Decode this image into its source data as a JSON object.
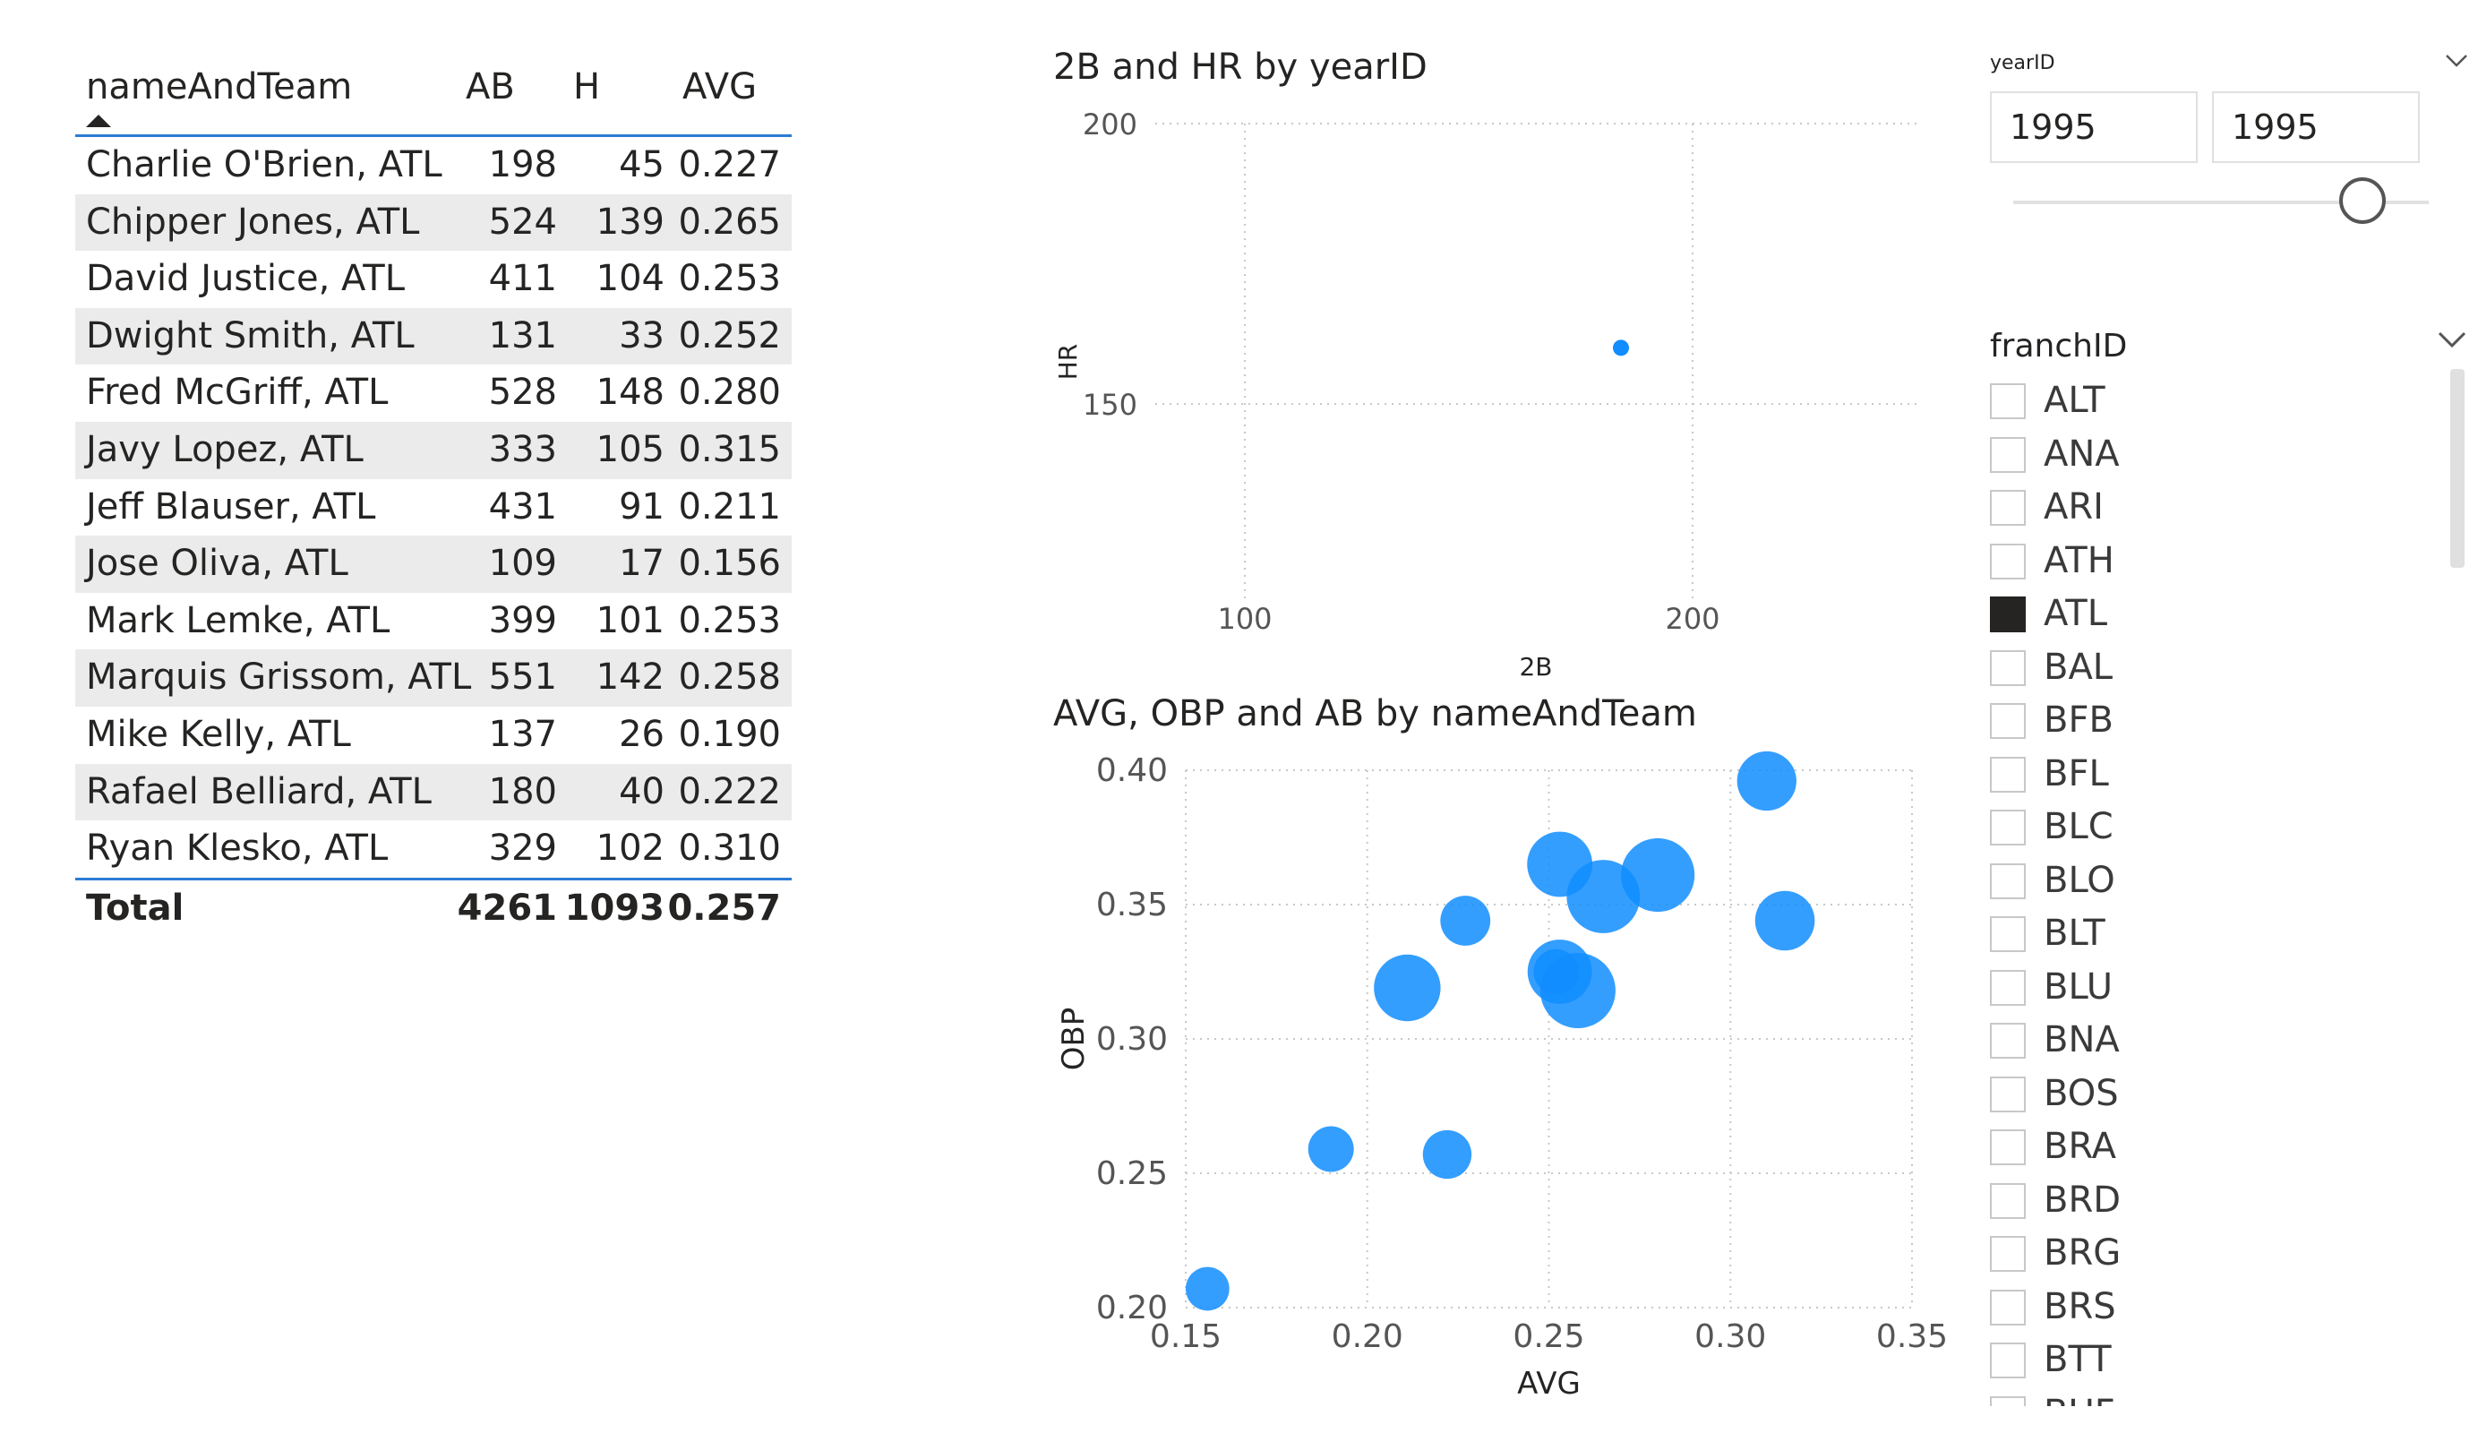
{
  "table": {
    "headers": {
      "name": "nameAndTeam",
      "ab": "AB",
      "h": "H",
      "avg": "AVG"
    },
    "rows": [
      {
        "name": "Charlie O'Brien, ATL",
        "ab": "198",
        "h": "45",
        "avg": "0.227"
      },
      {
        "name": "Chipper Jones, ATL",
        "ab": "524",
        "h": "139",
        "avg": "0.265"
      },
      {
        "name": "David Justice, ATL",
        "ab": "411",
        "h": "104",
        "avg": "0.253"
      },
      {
        "name": "Dwight Smith, ATL",
        "ab": "131",
        "h": "33",
        "avg": "0.252"
      },
      {
        "name": "Fred McGriff, ATL",
        "ab": "528",
        "h": "148",
        "avg": "0.280"
      },
      {
        "name": "Javy Lopez, ATL",
        "ab": "333",
        "h": "105",
        "avg": "0.315"
      },
      {
        "name": "Jeff Blauser, ATL",
        "ab": "431",
        "h": "91",
        "avg": "0.211"
      },
      {
        "name": "Jose Oliva, ATL",
        "ab": "109",
        "h": "17",
        "avg": "0.156"
      },
      {
        "name": "Mark Lemke, ATL",
        "ab": "399",
        "h": "101",
        "avg": "0.253"
      },
      {
        "name": "Marquis Grissom, ATL",
        "ab": "551",
        "h": "142",
        "avg": "0.258"
      },
      {
        "name": "Mike Kelly, ATL",
        "ab": "137",
        "h": "26",
        "avg": "0.190"
      },
      {
        "name": "Rafael Belliard, ATL",
        "ab": "180",
        "h": "40",
        "avg": "0.222"
      },
      {
        "name": "Ryan Klesko, ATL",
        "ab": "329",
        "h": "102",
        "avg": "0.310"
      }
    ],
    "total": {
      "label": "Total",
      "ab": "4261",
      "h": "1093",
      "avg": "0.257"
    }
  },
  "colors": {
    "accent": "#2b7cd3",
    "bubble": "#118dff",
    "row_alt": "#ebebeb"
  },
  "chart_data": [
    {
      "type": "scatter",
      "title": "2B and HR by yearID",
      "xlabel": "2B",
      "ylabel": "HR",
      "xlim": [
        80,
        250
      ],
      "ylim": [
        115,
        200
      ],
      "xticks": [
        100,
        200
      ],
      "yticks": [
        150,
        200
      ],
      "points": [
        {
          "x": 184,
          "y": 160
        }
      ]
    },
    {
      "type": "scatter",
      "title": "AVG, OBP and AB by nameAndTeam",
      "xlabel": "AVG",
      "ylabel": "OBP",
      "xlim": [
        0.15,
        0.35
      ],
      "ylim": [
        0.2,
        0.4
      ],
      "xticks": [
        "0.15",
        "0.20",
        "0.25",
        "0.30",
        "0.35"
      ],
      "yticks": [
        "0.20",
        "0.25",
        "0.30",
        "0.35",
        "0.40"
      ],
      "size_field": "AB",
      "points": [
        {
          "x": 0.227,
          "y": 0.344,
          "size": 198
        },
        {
          "x": 0.265,
          "y": 0.353,
          "size": 524
        },
        {
          "x": 0.253,
          "y": 0.365,
          "size": 411
        },
        {
          "x": 0.252,
          "y": 0.325,
          "size": 131
        },
        {
          "x": 0.28,
          "y": 0.361,
          "size": 528
        },
        {
          "x": 0.315,
          "y": 0.344,
          "size": 333
        },
        {
          "x": 0.211,
          "y": 0.319,
          "size": 431
        },
        {
          "x": 0.156,
          "y": 0.207,
          "size": 109
        },
        {
          "x": 0.253,
          "y": 0.325,
          "size": 399
        },
        {
          "x": 0.258,
          "y": 0.318,
          "size": 551
        },
        {
          "x": 0.19,
          "y": 0.259,
          "size": 137
        },
        {
          "x": 0.222,
          "y": 0.257,
          "size": 180
        },
        {
          "x": 0.31,
          "y": 0.396,
          "size": 329
        }
      ]
    }
  ],
  "year_slicer": {
    "label": "yearID",
    "from": "1995",
    "to": "1995",
    "slider_position": 0.9
  },
  "franch_slicer": {
    "label": "franchID",
    "items": [
      {
        "code": "ALT",
        "checked": false
      },
      {
        "code": "ANA",
        "checked": false
      },
      {
        "code": "ARI",
        "checked": false
      },
      {
        "code": "ATH",
        "checked": false
      },
      {
        "code": "ATL",
        "checked": true
      },
      {
        "code": "BAL",
        "checked": false
      },
      {
        "code": "BFB",
        "checked": false
      },
      {
        "code": "BFL",
        "checked": false
      },
      {
        "code": "BLC",
        "checked": false
      },
      {
        "code": "BLO",
        "checked": false
      },
      {
        "code": "BLT",
        "checked": false
      },
      {
        "code": "BLU",
        "checked": false
      },
      {
        "code": "BNA",
        "checked": false
      },
      {
        "code": "BOS",
        "checked": false
      },
      {
        "code": "BRA",
        "checked": false
      },
      {
        "code": "BRD",
        "checked": false
      },
      {
        "code": "BRG",
        "checked": false
      },
      {
        "code": "BRS",
        "checked": false
      },
      {
        "code": "BTT",
        "checked": false
      },
      {
        "code": "BUF",
        "checked": false
      }
    ]
  }
}
